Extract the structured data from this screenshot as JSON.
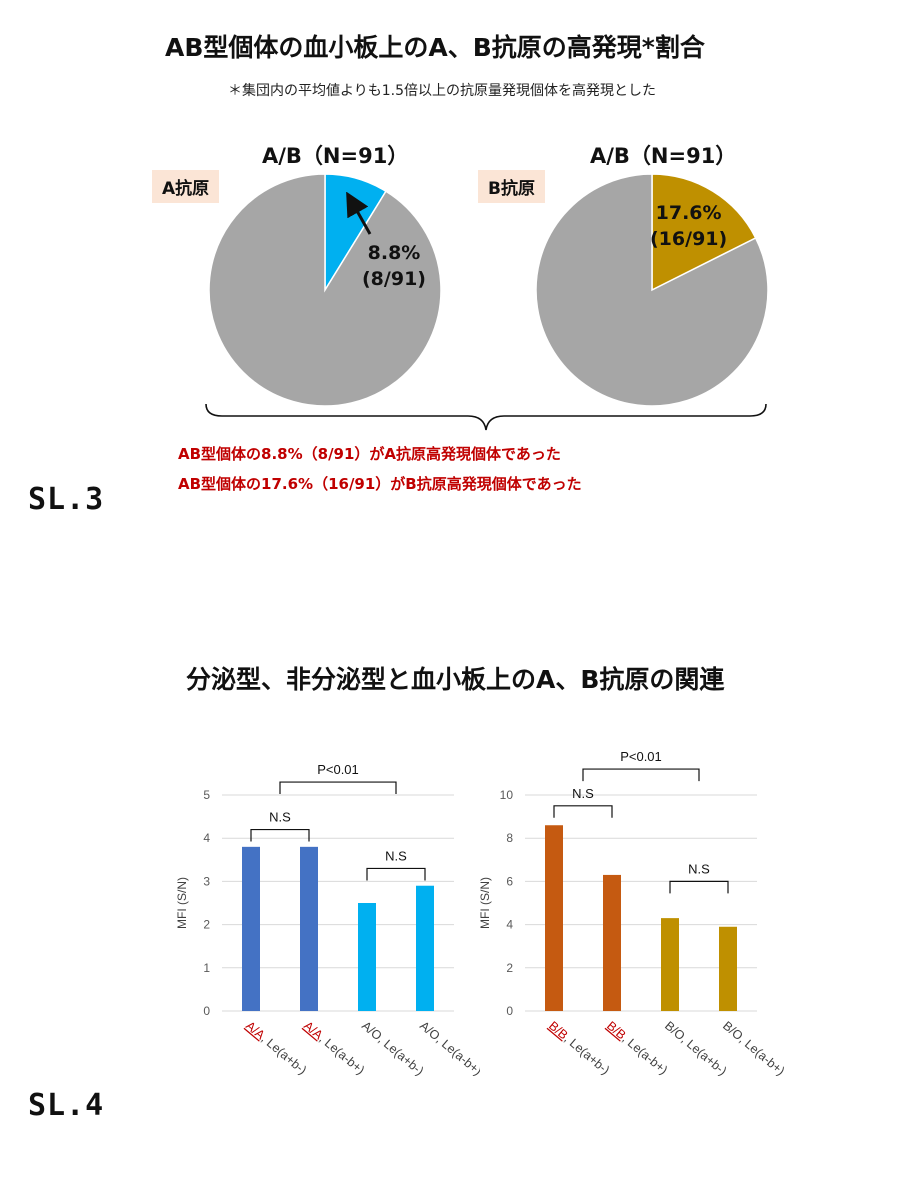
{
  "sl3": {
    "title": "AB型個体の血小板上のA、B抗原の高発現*割合",
    "note": "＊集団内の平均値よりも1.5倍以上の抗原量発現個体を高発現とした",
    "slide_label": "SL.3",
    "conclusions": [
      "AB型個体の8.8%（8/91）がA抗原高発現個体であった",
      "AB型個体の17.6%（16/91）がB抗原高発現個体であった"
    ]
  },
  "sl4": {
    "title": "分泌型、非分泌型と血小板上のA、B抗原の関連",
    "slide_label": "SL.4"
  },
  "colors": {
    "pie_rest": "#a6a6a6",
    "pie_a": "#00b0f0",
    "pie_b": "#bf9000",
    "red_text": "#c00000",
    "bar_blue_dark": "#4472c4",
    "bar_blue_light": "#00b0f0",
    "bar_orange": "#c55a11",
    "bar_gold": "#bf9000"
  },
  "chart_data": [
    {
      "type": "pie",
      "header": "A/B（N=91）",
      "tag": "A抗原",
      "slices": [
        {
          "label": "8.8% (8/91)",
          "value": 8.8,
          "color": "#00b0f0"
        },
        {
          "label": "",
          "value": 91.2,
          "color": "#a6a6a6"
        }
      ],
      "label_lines": [
        "8.8%",
        "(8/91)"
      ]
    },
    {
      "type": "pie",
      "header": "A/B（N=91）",
      "tag": "B抗原",
      "slices": [
        {
          "label": "17.6% (16/91)",
          "value": 17.6,
          "color": "#bf9000"
        },
        {
          "label": "",
          "value": 82.4,
          "color": "#a6a6a6"
        }
      ],
      "label_lines": [
        "17.6%",
        "(16/91)"
      ]
    },
    {
      "type": "bar",
      "ylabel": "MFI (S/N)",
      "ylim": [
        0,
        5
      ],
      "yticks": [
        0,
        1,
        2,
        3,
        4,
        5
      ],
      "grid": true,
      "categories": [
        "A/A, Le(a+b-)",
        "A/A, Le(a-b+)",
        "A/O, Le(a+b-)",
        "A/O, Le(a-b+)"
      ],
      "category_prefix": [
        "A/A",
        "A/A",
        "A/O",
        "A/O"
      ],
      "category_suffix": [
        ", Le(a+b-)",
        ", Le(a-b+)",
        ", Le(a+b-)",
        ", Le(a-b+)"
      ],
      "prefix_red": [
        true,
        true,
        false,
        false
      ],
      "values": [
        3.8,
        3.8,
        2.5,
        2.9
      ],
      "bar_colors": [
        "#4472c4",
        "#4472c4",
        "#00b0f0",
        "#00b0f0"
      ],
      "annotations": [
        {
          "text": "N.S",
          "from": 0,
          "to": 1,
          "level": 4.2
        },
        {
          "text": "N.S",
          "from": 2,
          "to": 3,
          "level": 3.3
        },
        {
          "text": "P<0.01",
          "from": 0.5,
          "to": 2.5,
          "level": 5.3
        }
      ]
    },
    {
      "type": "bar",
      "ylabel": "MFI (S/N)",
      "ylim": [
        0,
        10
      ],
      "yticks": [
        0,
        2,
        4,
        6,
        8,
        10
      ],
      "grid": true,
      "categories": [
        "B/B, Le(a+b-)",
        "B/B, Le(a-b+)",
        "B/O, Le(a+b-)",
        "B/O, Le(a-b+)"
      ],
      "category_prefix": [
        "B/B",
        "B/B",
        "B/O",
        "B/O"
      ],
      "category_suffix": [
        ", Le(a+b-)",
        ", Le(a-b+)",
        ", Le(a+b-)",
        ", Le(a-b+)"
      ],
      "prefix_red": [
        true,
        true,
        false,
        false
      ],
      "values": [
        8.6,
        6.3,
        4.3,
        3.9
      ],
      "bar_colors": [
        "#c55a11",
        "#c55a11",
        "#bf9000",
        "#bf9000"
      ],
      "annotations": [
        {
          "text": "N.S",
          "from": 0,
          "to": 1,
          "level": 9.5
        },
        {
          "text": "N.S",
          "from": 2,
          "to": 3,
          "level": 6.0
        },
        {
          "text": "P<0.01",
          "from": 0.5,
          "to": 2.5,
          "level": 11.2
        }
      ]
    }
  ]
}
